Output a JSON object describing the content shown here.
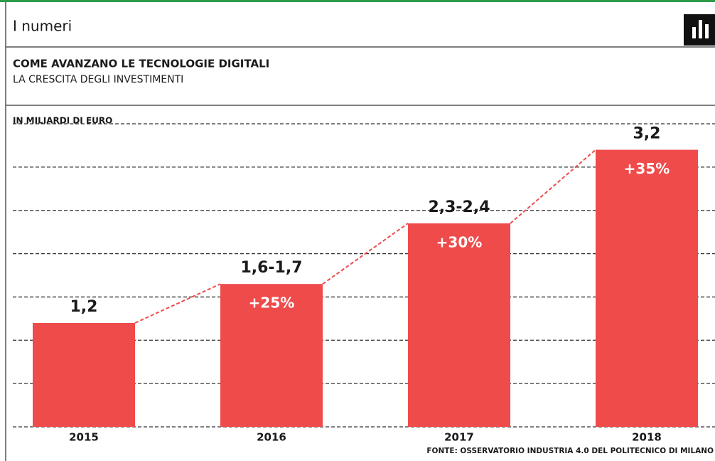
{
  "header": "I numeri",
  "chart_data": {
    "type": "bar",
    "title": "COME AVANZANO LE TECNOLOGIE DIGITALI",
    "subtitle": "LA CRESCITA DEGLI INVESTIMENTI",
    "ylabel": "IN MILIARDI DI EURO",
    "categories": [
      "2015",
      "2016",
      "2017",
      "2018"
    ],
    "values": [
      1.2,
      1.65,
      2.35,
      3.2
    ],
    "value_labels": [
      "1,2",
      "1,6-1,7",
      "2,3-2,4",
      "3,2"
    ],
    "growth": [
      null,
      25,
      30,
      35
    ],
    "growth_labels": [
      null,
      "+25%",
      "+30%",
      "+35%"
    ],
    "color": "#ef4b4b",
    "ylim": [
      0,
      3.5
    ],
    "yticks": [
      0,
      0.5,
      1,
      1.5,
      2,
      2.5,
      3,
      3.5
    ],
    "grid": true,
    "source": "FONTE: OSSERVATORIO INDUSTRIA 4.0 DEL POLITECNICO DI MILANO"
  }
}
